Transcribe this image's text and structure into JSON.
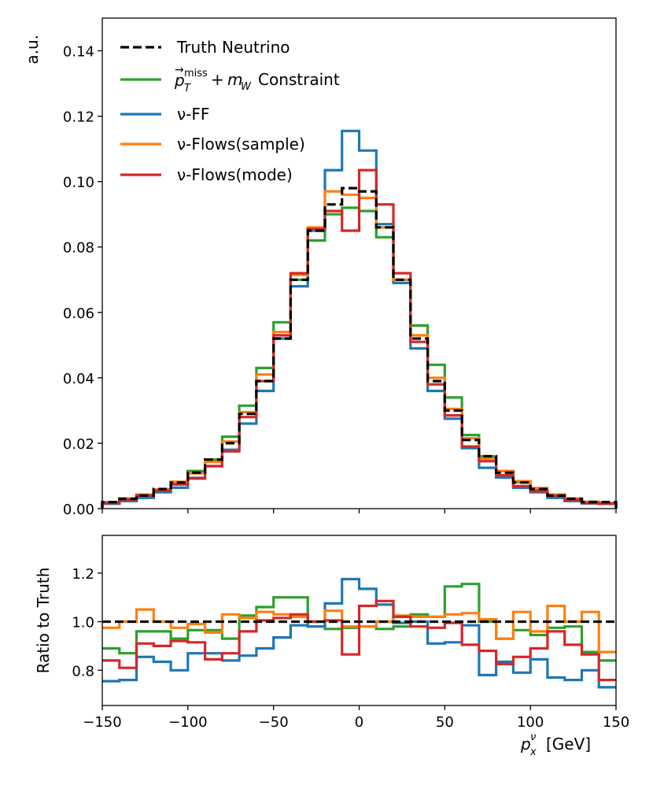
{
  "chart_data": [
    {
      "type": "line",
      "subtype": "step-histogram",
      "title": "",
      "xlabel": "",
      "ylabel": "a.u.",
      "xlim": [
        -150,
        150
      ],
      "ylim": [
        0,
        0.15
      ],
      "yticks": [
        0.0,
        0.02,
        0.04,
        0.06,
        0.08,
        0.1,
        0.12,
        0.14
      ],
      "ytick_labels": [
        "0.00",
        "0.02",
        "0.04",
        "0.06",
        "0.08",
        "0.10",
        "0.12",
        "0.14"
      ],
      "legend_position": "top-left",
      "bin_edges": [
        -150,
        -140,
        -130,
        -120,
        -110,
        -100,
        -90,
        -80,
        -70,
        -60,
        -50,
        -40,
        -30,
        -20,
        -10,
        0,
        10,
        20,
        30,
        40,
        50,
        60,
        70,
        80,
        90,
        100,
        110,
        120,
        130,
        140,
        150
      ],
      "series": [
        {
          "name": "Truth Neutrino",
          "legend_label": "Truth Neutrino",
          "color": "#000000",
          "dashed": true,
          "values": [
            0.002,
            0.003,
            0.004,
            0.006,
            0.008,
            0.011,
            0.015,
            0.02,
            0.029,
            0.039,
            0.052,
            0.07,
            0.085,
            0.093,
            0.098,
            0.097,
            0.086,
            0.07,
            0.052,
            0.039,
            0.03,
            0.021,
            0.016,
            0.011,
            0.008,
            0.006,
            0.004,
            0.003,
            0.002,
            0.002
          ]
        },
        {
          "name": "pTmiss + mW Constraint",
          "legend_label_main": "Constraint",
          "legend_label_tex": "p_T^miss + m_W",
          "color": "#2ca02c",
          "dashed": false,
          "values": [
            0.0018,
            0.0026,
            0.0038,
            0.0055,
            0.0075,
            0.0115,
            0.015,
            0.022,
            0.0315,
            0.043,
            0.057,
            0.07,
            0.082,
            0.09,
            0.092,
            0.091,
            0.083,
            0.07,
            0.056,
            0.044,
            0.034,
            0.0225,
            0.016,
            0.0115,
            0.0081,
            0.0058,
            0.0043,
            0.0029,
            0.0021,
            0.0015
          ]
        },
        {
          "name": "nu-FF",
          "legend_label": "ν-FF",
          "color": "#1f77b4",
          "dashed": false,
          "values": [
            0.0015,
            0.0023,
            0.0033,
            0.005,
            0.0064,
            0.0094,
            0.013,
            0.018,
            0.026,
            0.036,
            0.052,
            0.068,
            0.085,
            0.1035,
            0.1155,
            0.1095,
            0.087,
            0.069,
            0.049,
            0.036,
            0.0275,
            0.0185,
            0.0125,
            0.0095,
            0.0064,
            0.005,
            0.0033,
            0.0023,
            0.0016,
            0.0015
          ]
        },
        {
          "name": "nu-Flows(sample)",
          "legend_label": "ν-Flows(sample)",
          "color": "#ff7f0e",
          "dashed": false,
          "values": [
            0.002,
            0.0031,
            0.0043,
            0.0059,
            0.0082,
            0.0108,
            0.0143,
            0.0205,
            0.0295,
            0.041,
            0.054,
            0.0715,
            0.086,
            0.097,
            0.096,
            0.095,
            0.086,
            0.07,
            0.053,
            0.04,
            0.0305,
            0.0215,
            0.0153,
            0.0115,
            0.0084,
            0.0063,
            0.0043,
            0.0031,
            0.0021,
            0.0017
          ]
        },
        {
          "name": "nu-Flows(mode)",
          "legend_label": "ν-Flows(mode)",
          "color": "#d62728",
          "dashed": false,
          "values": [
            0.0017,
            0.0028,
            0.004,
            0.0055,
            0.0074,
            0.0092,
            0.013,
            0.0175,
            0.028,
            0.039,
            0.053,
            0.072,
            0.0855,
            0.091,
            0.085,
            0.1035,
            0.093,
            0.072,
            0.051,
            0.038,
            0.0285,
            0.019,
            0.0145,
            0.0102,
            0.0069,
            0.0053,
            0.0039,
            0.0027,
            0.0017,
            0.0015
          ]
        }
      ]
    },
    {
      "type": "line",
      "subtype": "step-ratio",
      "title": "",
      "xlabel": "p_x^ν [GeV]",
      "ylabel": "Ratio to Truth",
      "xlim": [
        -150,
        150
      ],
      "ylim": [
        0.655,
        1.355
      ],
      "xticks": [
        -150,
        -100,
        -50,
        0,
        50,
        100,
        150
      ],
      "xtick_labels": [
        "−150",
        "−100",
        "−50",
        "0",
        "50",
        "100",
        "150"
      ],
      "yticks": [
        0.8,
        1.0,
        1.2
      ],
      "ytick_labels": [
        "0.8",
        "1.0",
        "1.2"
      ],
      "reference_line": 1.0,
      "bin_edges": [
        -150,
        -140,
        -130,
        -120,
        -110,
        -100,
        -90,
        -80,
        -70,
        -60,
        -50,
        -40,
        -30,
        -20,
        -10,
        0,
        10,
        20,
        30,
        40,
        50,
        60,
        70,
        80,
        90,
        100,
        110,
        120,
        130,
        140,
        150
      ],
      "series": [
        {
          "name": "pTmiss + mW Constraint",
          "color": "#2ca02c",
          "values": [
            0.89,
            0.87,
            0.96,
            0.96,
            0.93,
            0.965,
            0.965,
            0.93,
            1.025,
            1.06,
            1.1,
            1.1,
            0.98,
            0.97,
            0.975,
            0.98,
            0.97,
            0.98,
            1.03,
            1.02,
            1.145,
            1.155,
            1.0,
            0.93,
            0.965,
            0.945,
            0.975,
            0.98,
            0.875,
            0.84
          ]
        },
        {
          "name": "nu-FF",
          "color": "#1f77b4",
          "values": [
            0.755,
            0.76,
            0.855,
            0.835,
            0.8,
            0.87,
            0.87,
            0.84,
            0.86,
            0.89,
            0.935,
            0.985,
            0.98,
            1.075,
            1.175,
            1.135,
            1.07,
            0.995,
            1.0,
            0.91,
            0.915,
            0.985,
            0.78,
            0.835,
            0.79,
            0.845,
            0.77,
            0.76,
            0.8,
            0.73
          ]
        },
        {
          "name": "nu-Flows(sample)",
          "color": "#ff7f0e",
          "values": [
            0.975,
            1.0,
            1.05,
            1.0,
            0.975,
            0.99,
            0.955,
            1.03,
            1.015,
            1.04,
            1.03,
            1.02,
            1.0,
            1.045,
            0.98,
            0.98,
            1.0,
            1.025,
            1.02,
            1.02,
            1.03,
            1.035,
            1.01,
            0.93,
            1.04,
            0.96,
            1.065,
            1.0,
            1.04,
            0.875
          ]
        },
        {
          "name": "nu-Flows(mode)",
          "color": "#d62728",
          "values": [
            0.84,
            0.81,
            0.91,
            0.9,
            0.92,
            0.915,
            0.845,
            0.87,
            0.96,
            1.005,
            1.015,
            1.03,
            1.0,
            1.005,
            0.865,
            1.065,
            1.085,
            1.02,
            0.98,
            0.975,
            0.995,
            0.905,
            0.88,
            0.825,
            0.855,
            0.89,
            0.96,
            0.905,
            0.865,
            0.76
          ]
        },
        {
          "name": "Truth Neutrino",
          "color": "#000000",
          "dashed": true,
          "values": [
            1,
            1,
            1,
            1,
            1,
            1,
            1,
            1,
            1,
            1,
            1,
            1,
            1,
            1,
            1,
            1,
            1,
            1,
            1,
            1,
            1,
            1,
            1,
            1,
            1,
            1,
            1,
            1,
            1,
            1
          ]
        }
      ]
    }
  ]
}
